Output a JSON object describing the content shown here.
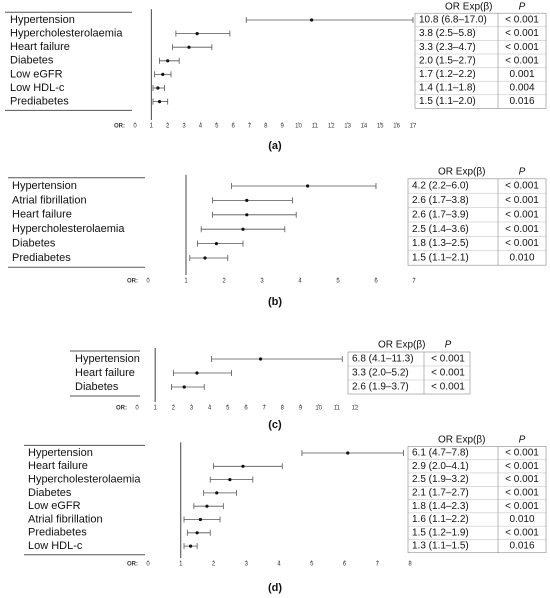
{
  "chart_data": [
    {
      "type": "forest",
      "title": "(a)",
      "x_label": "OR:",
      "columns": [
        "OR Exp(β)",
        "P"
      ],
      "reference": 1,
      "categories": [
        "Hypertension",
        "Hypercholesterolaemia",
        "Heart failure",
        "Diabetes",
        "Low eGFR",
        "Low HDL-c",
        "Prediabetes"
      ],
      "values": [
        10.8,
        3.8,
        3.3,
        2.0,
        1.7,
        1.4,
        1.5
      ],
      "lower": [
        6.8,
        2.5,
        2.3,
        1.5,
        1.2,
        1.1,
        1.1
      ],
      "upper": [
        17.0,
        5.8,
        4.7,
        2.7,
        2.2,
        1.8,
        2.0
      ],
      "value_labels": [
        "10.8 (6.8–17.0)",
        "3.8 (2.5–5.8)",
        "3.3 (2.3–4.7)",
        "2.0 (1.5–2.7)",
        "1.7 (1.2–2.2)",
        "1.4 (1.1–1.8)",
        "1.5 (1.1–2.0)"
      ],
      "p_values": [
        "< 0.001",
        "< 0.001",
        "< 0.001",
        "< 0.001",
        "0.001",
        "0.004",
        "0.016"
      ],
      "xlim": [
        0,
        17
      ],
      "xticks": [
        0,
        1,
        2,
        3,
        4,
        5,
        6,
        7,
        8,
        9,
        10,
        11,
        12,
        13,
        14,
        15,
        16,
        17
      ]
    },
    {
      "type": "forest",
      "title": "(b)",
      "x_label": "OR:",
      "columns": [
        "OR Exp(β)",
        "P"
      ],
      "reference": 1,
      "categories": [
        "Hypertension",
        "Atrial fibrillation",
        "Heart failure",
        "Hypercholesterolaemia",
        "Diabetes",
        "Prediabetes"
      ],
      "values": [
        4.2,
        2.6,
        2.6,
        2.5,
        1.8,
        1.5
      ],
      "lower": [
        2.2,
        1.7,
        1.7,
        1.4,
        1.3,
        1.1
      ],
      "upper": [
        6.0,
        3.8,
        3.9,
        3.6,
        2.5,
        2.1
      ],
      "value_labels": [
        "4.2 (2.2–6.0)",
        "2.6 (1.7–3.8)",
        "2.6 (1.7–3.9)",
        "2.5 (1.4–3.6)",
        "1.8 (1.3–2.5)",
        "1.5 (1.1–2.1)"
      ],
      "p_values": [
        "< 0.001",
        "< 0.001",
        "< 0.001",
        "< 0.001",
        "< 0.001",
        "0.010"
      ],
      "xlim": [
        0,
        7
      ],
      "xticks": [
        0,
        1,
        2,
        3,
        4,
        5,
        6,
        7
      ]
    },
    {
      "type": "forest",
      "title": "(c)",
      "x_label": "OR:",
      "columns": [
        "OR Exp(β)",
        "P"
      ],
      "reference": 1,
      "categories": [
        "Hypertension",
        "Heart failure",
        "Diabetes"
      ],
      "values": [
        6.8,
        3.3,
        2.6
      ],
      "lower": [
        4.1,
        2.0,
        1.9
      ],
      "upper": [
        11.3,
        5.2,
        3.7
      ],
      "value_labels": [
        "6.8 (4.1–11.3)",
        "3.3 (2.0–5.2)",
        "2.6 (1.9–3.7)"
      ],
      "p_values": [
        "< 0.001",
        "< 0.001",
        "< 0.001"
      ],
      "xlim": [
        0,
        12
      ],
      "xticks": [
        0,
        1,
        2,
        3,
        4,
        5,
        6,
        7,
        8,
        9,
        10,
        11,
        12
      ]
    },
    {
      "type": "forest",
      "title": "(d)",
      "x_label": "OR:",
      "columns": [
        "OR Exp(β)",
        "P"
      ],
      "reference": 1,
      "categories": [
        "Hypertension",
        "Heart failure",
        "Hypercholesterolaemia",
        "Diabetes",
        "Low eGFR",
        "Atrial fibrillation",
        "Prediabetes",
        "Low HDL-c"
      ],
      "values": [
        6.1,
        2.9,
        2.5,
        2.1,
        1.8,
        1.6,
        1.5,
        1.3
      ],
      "lower": [
        4.7,
        2.0,
        1.9,
        1.7,
        1.4,
        1.1,
        1.2,
        1.1
      ],
      "upper": [
        7.8,
        4.1,
        3.2,
        2.7,
        2.3,
        2.2,
        1.9,
        1.5
      ],
      "value_labels": [
        "6.1 (4.7–7.8)",
        "2.9 (2.0–4.1)",
        "2.5 (1.9–3.2)",
        "2.1 (1.7–2.7)",
        "1.8 (1.4–2.3)",
        "1.6 (1.1–2.2)",
        "1.5 (1.2–1.9)",
        "1.3 (1.1–1.5)"
      ],
      "p_values": [
        "< 0.001",
        "< 0.001",
        "< 0.001",
        "< 0.001",
        "< 0.001",
        "0.010",
        "< 0.001",
        "0.016"
      ],
      "xlim": [
        0,
        8
      ],
      "xticks": [
        0,
        1,
        2,
        3,
        4,
        5,
        6,
        7,
        8
      ]
    }
  ]
}
